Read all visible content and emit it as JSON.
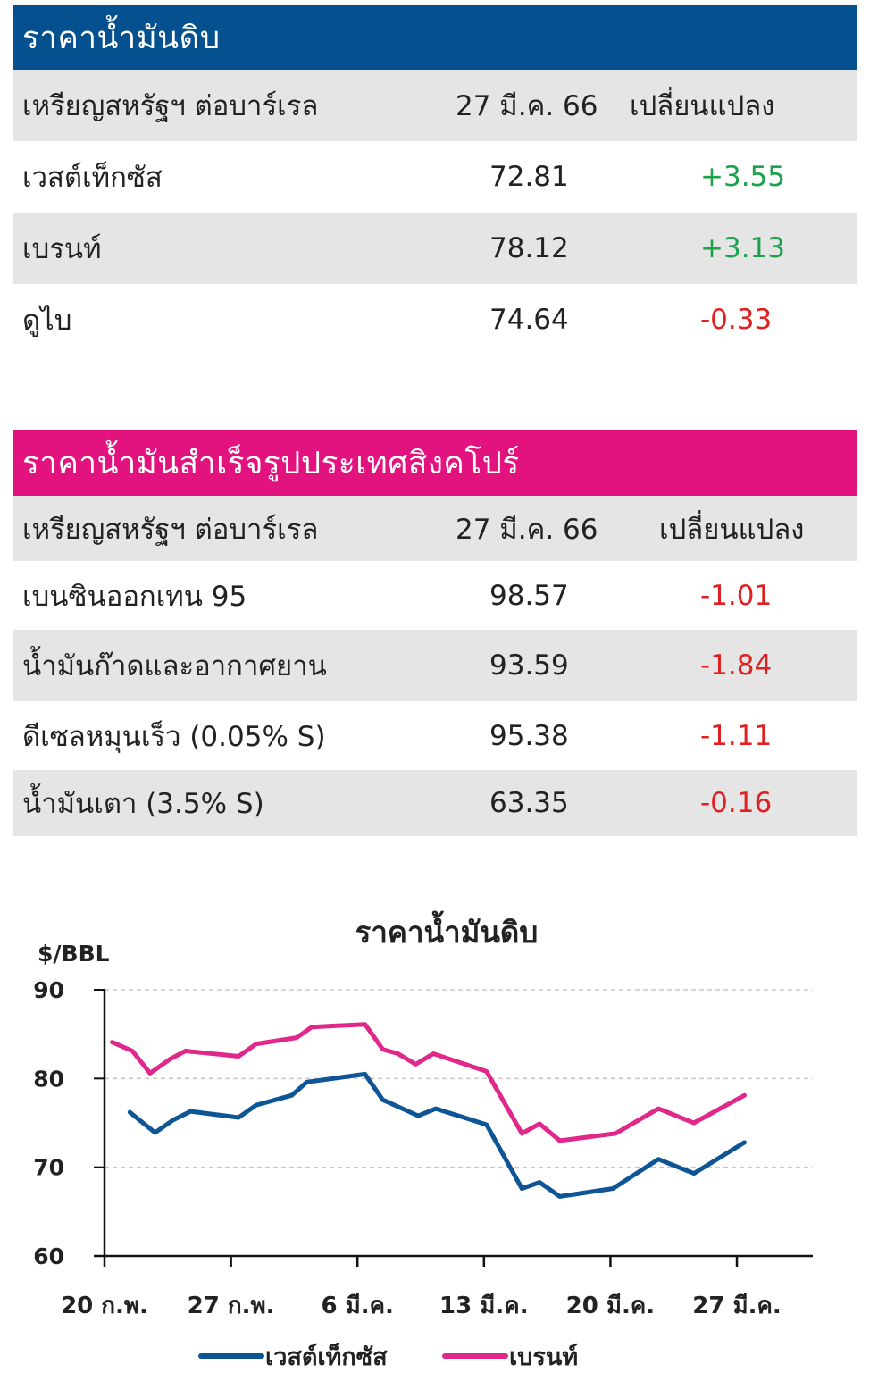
{
  "crude_table": {
    "title": "ราคาน้ำมันดิบ",
    "header": {
      "name": "เหรียญสหรัฐฯ ต่อบาร์เรล",
      "date": "27 มี.ค. 66",
      "change": "เปลี่ยนแปลง"
    },
    "rows": [
      {
        "name": "เวสต์เท็กซัส",
        "value": "72.81",
        "change": "+3.55"
      },
      {
        "name": "เบรนท์",
        "value": "78.12",
        "change": "+3.13"
      },
      {
        "name": "ดูไบ",
        "value": "74.64",
        "change": "-0.33"
      }
    ]
  },
  "refined_table": {
    "title": "ราคาน้ำมันสำเร็จรูปประเทศสิงคโปร์",
    "header": {
      "name": "เหรียญสหรัฐฯ ต่อบาร์เรล",
      "date": "27 มี.ค. 66",
      "change": "เปลี่ยนแปลง"
    },
    "rows": [
      {
        "name": "เบนซินออกเทน 95",
        "value": "98.57",
        "change": "-1.01"
      },
      {
        "name": "น้ำมันก๊าดและอากาศยาน",
        "value": "93.59",
        "change": "-1.84"
      },
      {
        "name": "ดีเซลหมุนเร็ว (0.05% S)",
        "value": "95.38",
        "change": "-1.11"
      },
      {
        "name": "น้ำมันเตา (3.5% S)",
        "value": "63.35",
        "change": "-0.16"
      }
    ]
  },
  "colors": {
    "crude_band": "#05508e",
    "refined_band": "#e2137f",
    "positive": "#1aa34a",
    "negative": "#e02020"
  },
  "chart_data": {
    "type": "line",
    "title": "ราคาน้ำมันดิบ",
    "ylabel": "$/BBL",
    "ylim": [
      60,
      90
    ],
    "yticks": [
      60,
      70,
      80,
      90
    ],
    "grid": "dashed horizontal at 70, 80, 90",
    "xlim": [
      0,
      28
    ],
    "xticks": [
      {
        "x": 0,
        "label": "20 ก.พ."
      },
      {
        "x": 5,
        "label": "27 ก.พ."
      },
      {
        "x": 10,
        "label": "6 มี.ค."
      },
      {
        "x": 15,
        "label": "13 มี.ค."
      },
      {
        "x": 20,
        "label": "20 มี.ค."
      },
      {
        "x": 25,
        "label": "27 มี.ค."
      }
    ],
    "legend_position": "bottom-center",
    "series": [
      {
        "name": "เวสต์เท็กซัส",
        "color": "#0e5596",
        "points": [
          [
            1,
            76.2
          ],
          [
            2,
            73.9
          ],
          [
            2.7,
            75.3
          ],
          [
            3.4,
            76.3
          ],
          [
            5.3,
            75.6
          ],
          [
            6,
            77.0
          ],
          [
            7.4,
            78.1
          ],
          [
            8,
            79.6
          ],
          [
            10.3,
            80.5
          ],
          [
            11,
            77.6
          ],
          [
            11.7,
            76.7
          ],
          [
            12.4,
            75.8
          ],
          [
            13.1,
            76.6
          ],
          [
            15.1,
            74.8
          ],
          [
            16.5,
            67.6
          ],
          [
            17.2,
            68.3
          ],
          [
            18,
            66.7
          ],
          [
            20.1,
            67.6
          ],
          [
            21.9,
            70.9
          ],
          [
            23.3,
            69.3
          ],
          [
            25.3,
            72.8
          ]
        ]
      },
      {
        "name": "เบรนท์",
        "color": "#e0288a",
        "points": [
          [
            0.3,
            84.1
          ],
          [
            1.1,
            83.1
          ],
          [
            1.8,
            80.6
          ],
          [
            2.6,
            82.2
          ],
          [
            3.2,
            83.1
          ],
          [
            5.3,
            82.5
          ],
          [
            6,
            83.9
          ],
          [
            7.6,
            84.6
          ],
          [
            8.2,
            85.8
          ],
          [
            10.3,
            86.1
          ],
          [
            11,
            83.3
          ],
          [
            11.6,
            82.8
          ],
          [
            12.3,
            81.6
          ],
          [
            13,
            82.8
          ],
          [
            15.1,
            80.8
          ],
          [
            16.5,
            73.8
          ],
          [
            17.2,
            74.9
          ],
          [
            18,
            73.0
          ],
          [
            20.2,
            73.8
          ],
          [
            21.9,
            76.6
          ],
          [
            23.3,
            75.0
          ],
          [
            25.3,
            78.1
          ]
        ]
      }
    ]
  }
}
